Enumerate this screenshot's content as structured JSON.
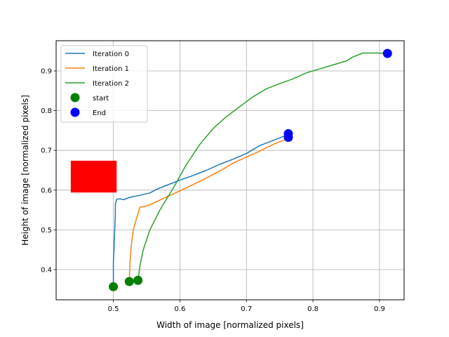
{
  "chart_data": {
    "type": "line",
    "title": "",
    "xlabel": "Width of image [normalized pixels]",
    "ylabel": "Height of image [normalized pixels]",
    "xlim": [
      0.414,
      0.937
    ],
    "ylim": [
      0.324,
      0.976
    ],
    "grid": true,
    "legend_position": "upper-left",
    "x_ticks": [
      {
        "value": 0.5,
        "label": "0.5"
      },
      {
        "value": 0.6,
        "label": "0.6"
      },
      {
        "value": 0.7,
        "label": "0.7"
      },
      {
        "value": 0.8,
        "label": "0.8"
      },
      {
        "value": 0.9,
        "label": "0.9"
      }
    ],
    "y_ticks": [
      {
        "value": 0.4,
        "label": "0.4"
      },
      {
        "value": 0.5,
        "label": "0.5"
      },
      {
        "value": 0.6,
        "label": "0.6"
      },
      {
        "value": 0.7,
        "label": "0.7"
      },
      {
        "value": 0.8,
        "label": "0.8"
      },
      {
        "value": 0.9,
        "label": "0.9"
      }
    ],
    "series": [
      {
        "name": "Iteration 0",
        "color": "#1f77b4",
        "points": [
          [
            0.5,
            0.357
          ],
          [
            0.5,
            0.42
          ],
          [
            0.501,
            0.45
          ],
          [
            0.502,
            0.5
          ],
          [
            0.503,
            0.54
          ],
          [
            0.503,
            0.565
          ],
          [
            0.505,
            0.577
          ],
          [
            0.51,
            0.578
          ],
          [
            0.515,
            0.576
          ],
          [
            0.525,
            0.582
          ],
          [
            0.54,
            0.587
          ],
          [
            0.555,
            0.593
          ],
          [
            0.565,
            0.602
          ],
          [
            0.58,
            0.612
          ],
          [
            0.6,
            0.625
          ],
          [
            0.62,
            0.637
          ],
          [
            0.64,
            0.65
          ],
          [
            0.66,
            0.665
          ],
          [
            0.68,
            0.678
          ],
          [
            0.7,
            0.692
          ],
          [
            0.72,
            0.712
          ],
          [
            0.74,
            0.725
          ],
          [
            0.763,
            0.74
          ]
        ]
      },
      {
        "name": "Iteration 1",
        "color": "#ff7f0e",
        "points": [
          [
            0.524,
            0.37
          ],
          [
            0.525,
            0.42
          ],
          [
            0.527,
            0.46
          ],
          [
            0.53,
            0.5
          ],
          [
            0.535,
            0.53
          ],
          [
            0.54,
            0.557
          ],
          [
            0.545,
            0.558
          ],
          [
            0.555,
            0.563
          ],
          [
            0.57,
            0.575
          ],
          [
            0.6,
            0.598
          ],
          [
            0.63,
            0.622
          ],
          [
            0.66,
            0.648
          ],
          [
            0.68,
            0.668
          ],
          [
            0.7,
            0.683
          ],
          [
            0.72,
            0.698
          ],
          [
            0.74,
            0.715
          ],
          [
            0.763,
            0.73
          ]
        ]
      },
      {
        "name": "Iteration 2",
        "color": "#2ca02c",
        "points": [
          [
            0.537,
            0.373
          ],
          [
            0.54,
            0.41
          ],
          [
            0.545,
            0.45
          ],
          [
            0.555,
            0.5
          ],
          [
            0.57,
            0.55
          ],
          [
            0.59,
            0.605
          ],
          [
            0.61,
            0.665
          ],
          [
            0.63,
            0.715
          ],
          [
            0.65,
            0.755
          ],
          [
            0.67,
            0.785
          ],
          [
            0.69,
            0.81
          ],
          [
            0.71,
            0.835
          ],
          [
            0.73,
            0.855
          ],
          [
            0.75,
            0.868
          ],
          [
            0.77,
            0.88
          ],
          [
            0.79,
            0.895
          ],
          [
            0.81,
            0.905
          ],
          [
            0.83,
            0.915
          ],
          [
            0.85,
            0.925
          ],
          [
            0.86,
            0.935
          ],
          [
            0.875,
            0.945
          ],
          [
            0.895,
            0.945
          ],
          [
            0.912,
            0.944
          ]
        ]
      }
    ],
    "markers": [
      {
        "name": "start",
        "color": "#008000",
        "points": [
          [
            0.5,
            0.357
          ],
          [
            0.524,
            0.37
          ],
          [
            0.537,
            0.373
          ]
        ]
      },
      {
        "name": "End",
        "color": "#0000ff",
        "points": [
          [
            0.763,
            0.742
          ],
          [
            0.763,
            0.733
          ],
          [
            0.912,
            0.944
          ]
        ]
      }
    ],
    "rectangle": {
      "color": "#ff0000",
      "x_range": [
        0.436,
        0.505
      ],
      "y_range": [
        0.594,
        0.674
      ]
    }
  }
}
